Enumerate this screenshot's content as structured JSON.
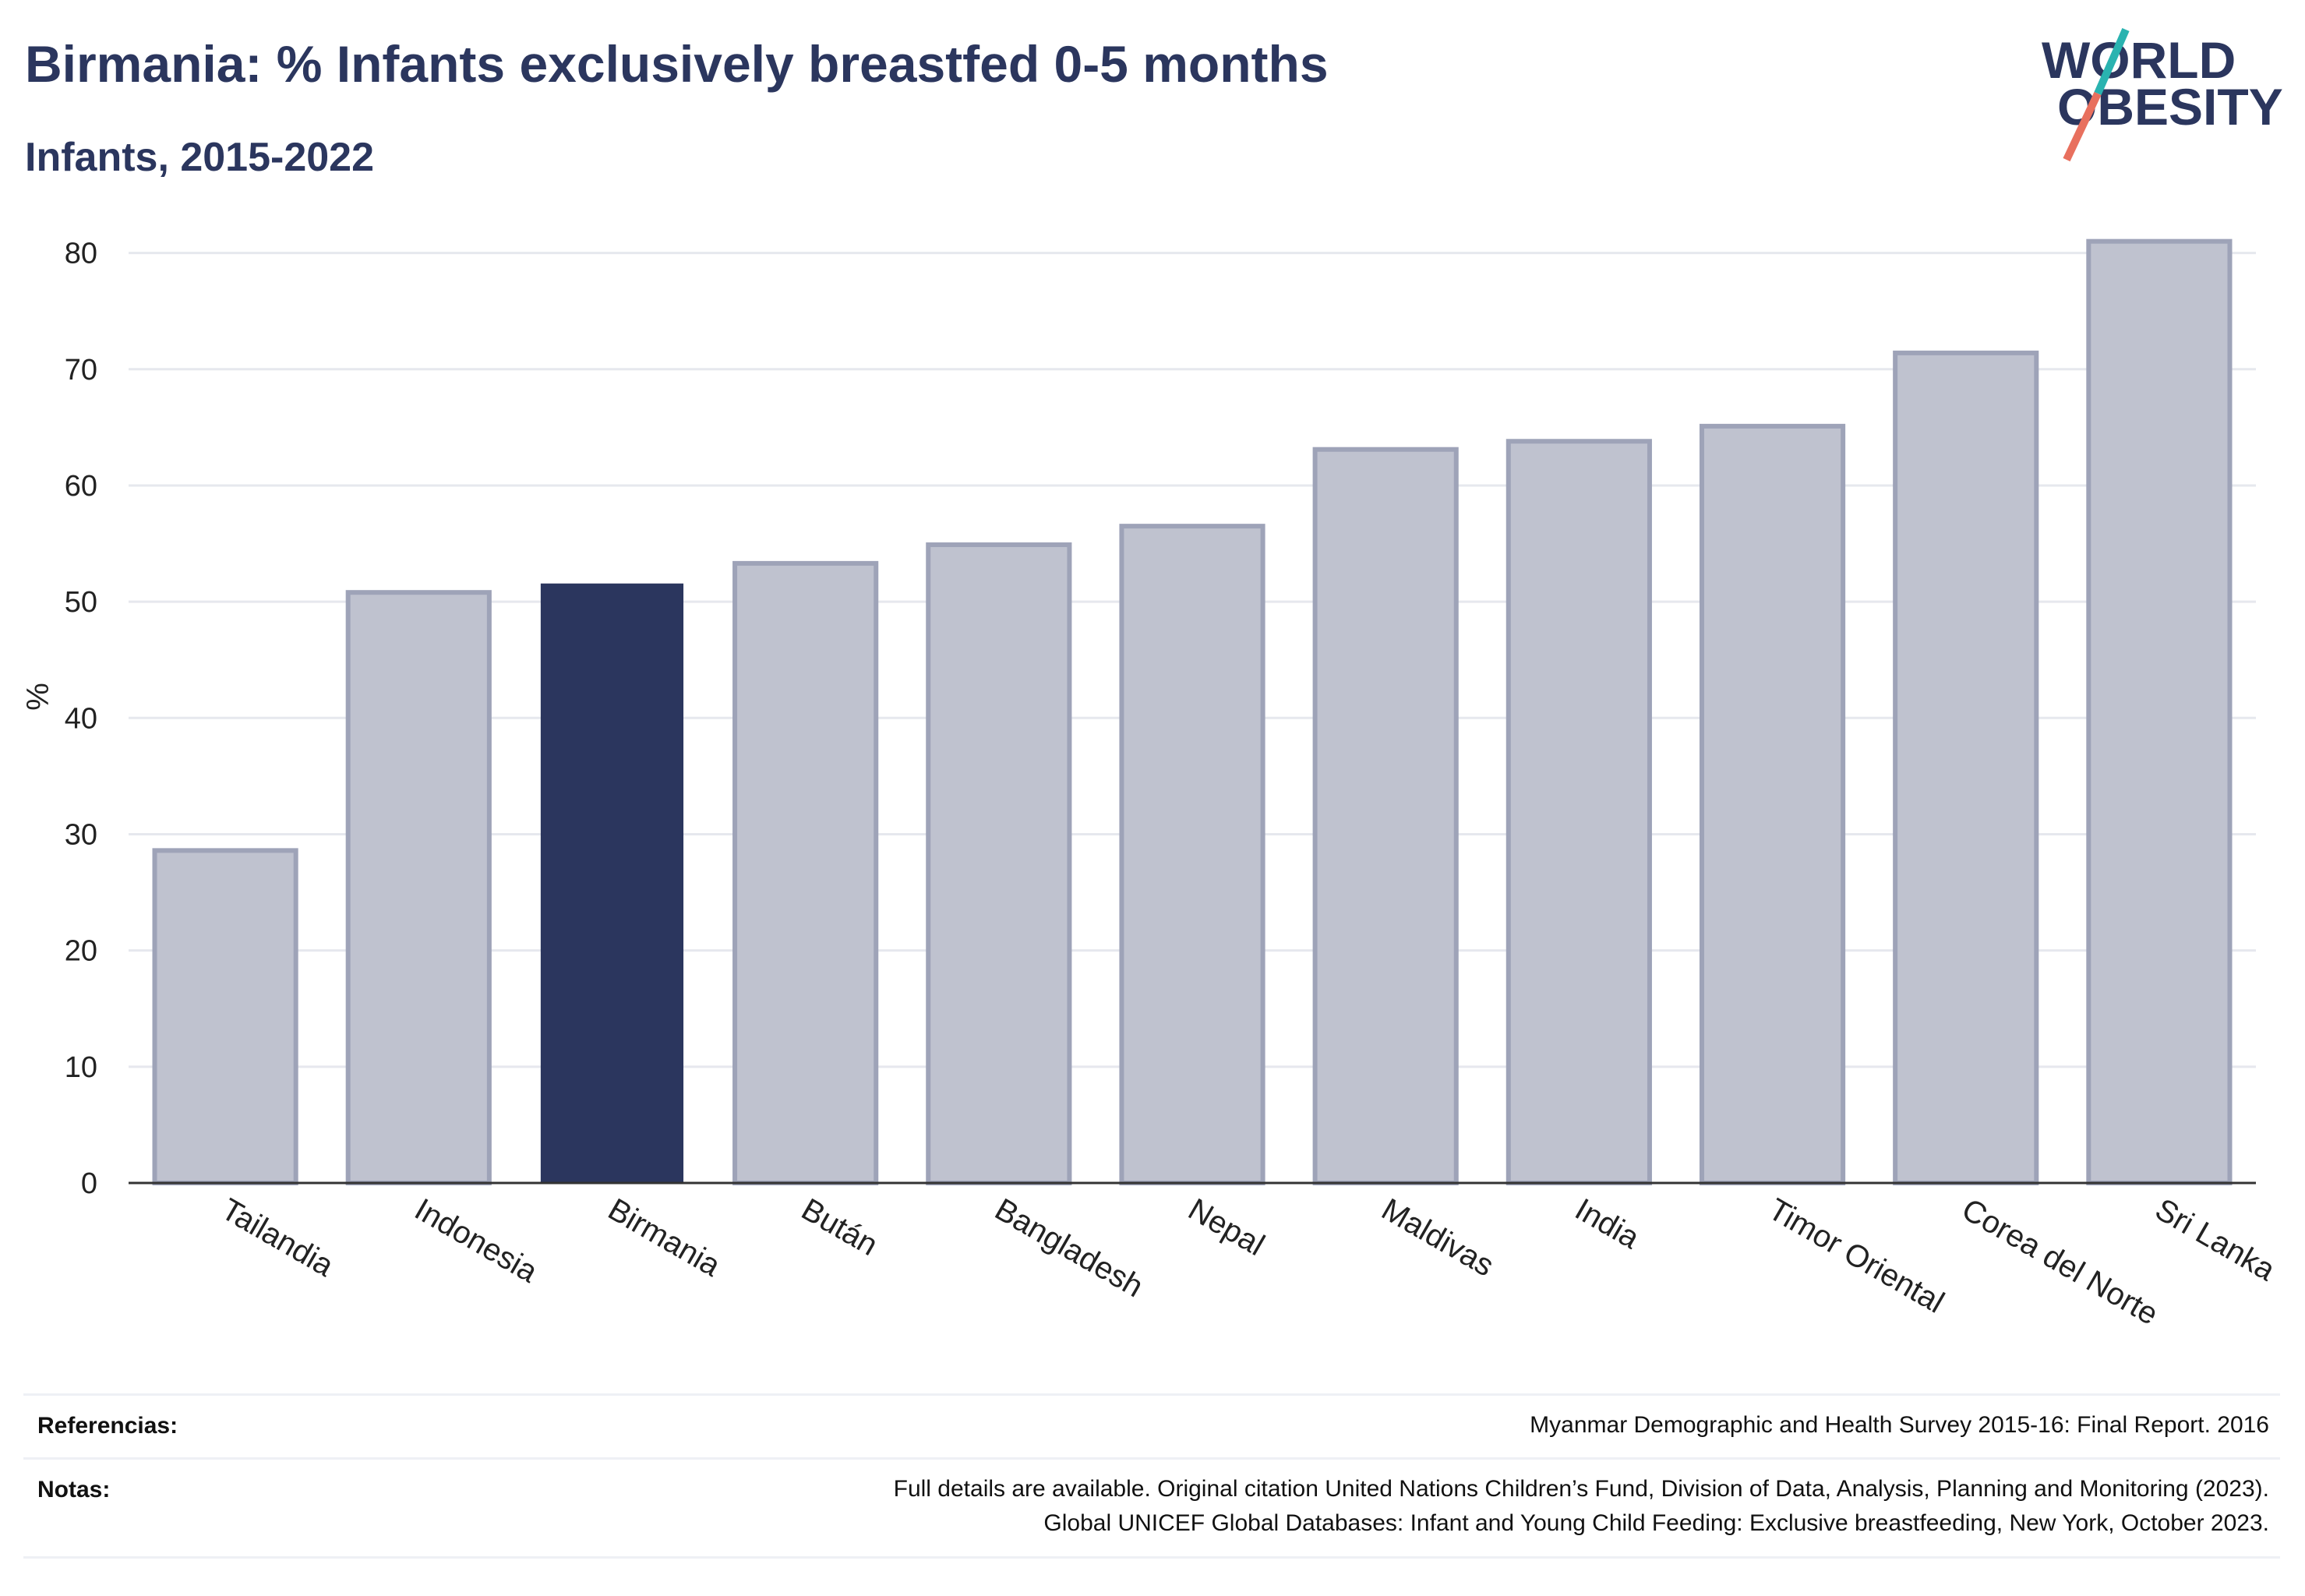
{
  "header": {
    "title": "Birmania: % Infants exclusively breastfed 0-5 months",
    "subtitle": "Infants, 2015-2022"
  },
  "logo": {
    "line1": "WORLD",
    "line2": "OBESITY"
  },
  "colors": {
    "highlight": "#2b365e",
    "bar": "#bfc2cf",
    "bar_border": "#9ea3b8",
    "accent_teal": "#2ab3b0",
    "accent_coral": "#e8705e",
    "grid": "#e6e8ee"
  },
  "chart_data": {
    "type": "bar",
    "ylabel": "%",
    "ylim": [
      0,
      85
    ],
    "yticks": [
      0,
      10,
      20,
      30,
      40,
      50,
      60,
      70,
      80
    ],
    "grid": true,
    "highlight": "Birmania",
    "categories": [
      "Tailandia",
      "Indonesia",
      "Birmania",
      "Bután",
      "Bangladesh",
      "Nepal",
      "Maldivas",
      "India",
      "Timor Oriental",
      "Corea del Norte",
      "Sri Lanka"
    ],
    "values": [
      28.6,
      50.8,
      51.5,
      53.3,
      54.9,
      56.5,
      63.1,
      63.8,
      65.1,
      71.4,
      81.0
    ]
  },
  "footer": {
    "references_label": "Referencias:",
    "references_text": "Myanmar Demographic and Health Survey 2015-16: Final Report. 2016",
    "notes_label": "Notas:",
    "notes_line1": "Full details are available. Original citation United Nations Children’s Fund, Division of Data, Analysis, Planning and Monitoring (2023).",
    "notes_line2": "Global UNICEF Global Databases: Infant and Young Child Feeding: Exclusive breastfeeding, New York, October 2023."
  }
}
